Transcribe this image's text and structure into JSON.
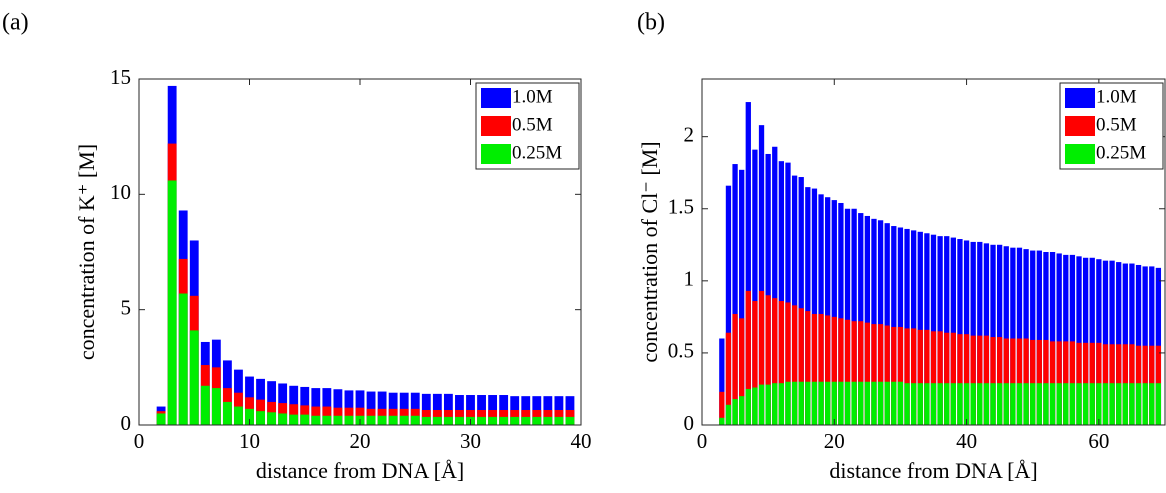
{
  "chart_data": [
    {
      "type": "bar",
      "label": "(a)",
      "xlabel": "distance from DNA [Å]",
      "ylabel": "concentration of K⁺ [M]",
      "x": [
        2,
        3,
        4,
        5,
        6,
        7,
        8,
        9,
        10,
        11,
        12,
        13,
        14,
        15,
        16,
        17,
        18,
        19,
        20,
        21,
        22,
        23,
        24,
        25,
        26,
        27,
        28,
        29,
        30,
        31,
        32,
        33,
        34,
        35,
        36,
        37,
        38,
        39
      ],
      "series": [
        {
          "name": "1.0M",
          "color": "#0000ff",
          "values": [
            0.8,
            14.7,
            9.3,
            8.0,
            3.6,
            3.7,
            2.8,
            2.4,
            2.1,
            2.0,
            1.9,
            1.8,
            1.7,
            1.65,
            1.6,
            1.6,
            1.55,
            1.5,
            1.5,
            1.45,
            1.45,
            1.4,
            1.4,
            1.4,
            1.35,
            1.35,
            1.35,
            1.3,
            1.3,
            1.3,
            1.3,
            1.3,
            1.25,
            1.25,
            1.25,
            1.25,
            1.25,
            1.25
          ]
        },
        {
          "name": "0.5M",
          "color": "#ff0000",
          "values": [
            0.6,
            12.2,
            7.2,
            5.6,
            2.6,
            2.5,
            1.6,
            1.4,
            1.2,
            1.1,
            1.0,
            0.95,
            0.9,
            0.85,
            0.8,
            0.8,
            0.75,
            0.75,
            0.75,
            0.7,
            0.7,
            0.7,
            0.7,
            0.7,
            0.65,
            0.65,
            0.65,
            0.65,
            0.65,
            0.65,
            0.65,
            0.65,
            0.65,
            0.65,
            0.65,
            0.65,
            0.65,
            0.65
          ]
        },
        {
          "name": "0.25M",
          "color": "#00ee00",
          "values": [
            0.5,
            10.6,
            5.7,
            4.1,
            1.7,
            1.6,
            1.0,
            0.8,
            0.7,
            0.6,
            0.55,
            0.5,
            0.45,
            0.45,
            0.4,
            0.4,
            0.4,
            0.4,
            0.4,
            0.4,
            0.4,
            0.4,
            0.4,
            0.4,
            0.35,
            0.35,
            0.35,
            0.35,
            0.35,
            0.35,
            0.35,
            0.35,
            0.35,
            0.35,
            0.35,
            0.35,
            0.35,
            0.35
          ]
        }
      ],
      "xlim": [
        0,
        40
      ],
      "ylim": [
        0,
        15
      ],
      "xticks": [
        0,
        10,
        20,
        30,
        40
      ],
      "yticks": [
        0,
        5,
        10,
        15
      ],
      "bar_width": 0.8,
      "legend": "upper right"
    },
    {
      "type": "bar",
      "label": "(b)",
      "xlabel": "distance from DNA [Å]",
      "ylabel": "concentration of Cl⁻ [M]",
      "x": [
        3,
        4,
        5,
        6,
        7,
        8,
        9,
        10,
        11,
        12,
        13,
        14,
        15,
        16,
        17,
        18,
        19,
        20,
        21,
        22,
        23,
        24,
        25,
        26,
        27,
        28,
        29,
        30,
        31,
        32,
        33,
        34,
        35,
        36,
        37,
        38,
        39,
        40,
        41,
        42,
        43,
        44,
        45,
        46,
        47,
        48,
        49,
        50,
        51,
        52,
        53,
        54,
        55,
        56,
        57,
        58,
        59,
        60,
        61,
        62,
        63,
        64,
        65,
        66,
        67,
        68,
        69
      ],
      "series": [
        {
          "name": "1.0M",
          "color": "#0000ff",
          "values": [
            0.6,
            1.66,
            1.81,
            1.77,
            2.24,
            1.91,
            2.08,
            1.88,
            1.93,
            1.83,
            1.82,
            1.73,
            1.72,
            1.65,
            1.64,
            1.6,
            1.58,
            1.56,
            1.54,
            1.5,
            1.5,
            1.47,
            1.45,
            1.43,
            1.42,
            1.4,
            1.38,
            1.37,
            1.36,
            1.35,
            1.34,
            1.33,
            1.32,
            1.31,
            1.31,
            1.3,
            1.29,
            1.28,
            1.27,
            1.27,
            1.26,
            1.25,
            1.25,
            1.24,
            1.23,
            1.23,
            1.22,
            1.21,
            1.21,
            1.2,
            1.2,
            1.19,
            1.18,
            1.18,
            1.17,
            1.16,
            1.16,
            1.15,
            1.14,
            1.14,
            1.13,
            1.12,
            1.12,
            1.11,
            1.1,
            1.1,
            1.09
          ]
        },
        {
          "name": "0.5M",
          "color": "#ff0000",
          "values": [
            0.23,
            0.64,
            0.77,
            0.74,
            0.93,
            0.86,
            0.93,
            0.9,
            0.88,
            0.86,
            0.85,
            0.83,
            0.81,
            0.79,
            0.77,
            0.77,
            0.76,
            0.75,
            0.74,
            0.73,
            0.72,
            0.72,
            0.71,
            0.7,
            0.7,
            0.69,
            0.68,
            0.68,
            0.67,
            0.67,
            0.66,
            0.66,
            0.65,
            0.65,
            0.64,
            0.64,
            0.63,
            0.63,
            0.62,
            0.62,
            0.62,
            0.61,
            0.61,
            0.6,
            0.6,
            0.6,
            0.6,
            0.59,
            0.59,
            0.59,
            0.58,
            0.58,
            0.58,
            0.58,
            0.57,
            0.57,
            0.57,
            0.57,
            0.56,
            0.56,
            0.56,
            0.56,
            0.56,
            0.55,
            0.55,
            0.55,
            0.55
          ]
        },
        {
          "name": "0.25M",
          "color": "#00ee00",
          "values": [
            0.05,
            0.14,
            0.18,
            0.2,
            0.25,
            0.26,
            0.28,
            0.28,
            0.29,
            0.29,
            0.3,
            0.3,
            0.3,
            0.3,
            0.3,
            0.3,
            0.3,
            0.3,
            0.3,
            0.3,
            0.3,
            0.3,
            0.3,
            0.3,
            0.3,
            0.3,
            0.3,
            0.3,
            0.29,
            0.29,
            0.29,
            0.29,
            0.29,
            0.29,
            0.29,
            0.29,
            0.29,
            0.29,
            0.29,
            0.29,
            0.29,
            0.29,
            0.29,
            0.29,
            0.29,
            0.29,
            0.29,
            0.29,
            0.29,
            0.29,
            0.29,
            0.29,
            0.29,
            0.29,
            0.29,
            0.29,
            0.29,
            0.29,
            0.29,
            0.29,
            0.29,
            0.29,
            0.29,
            0.29,
            0.29,
            0.29,
            0.29
          ]
        }
      ],
      "xlim": [
        0,
        70
      ],
      "ylim": [
        0,
        2.4
      ],
      "xticks": [
        0,
        20,
        40,
        60
      ],
      "yticks": [
        0,
        0.5,
        1,
        1.5,
        2
      ],
      "bar_width": 0.8,
      "legend": "upper right"
    }
  ]
}
